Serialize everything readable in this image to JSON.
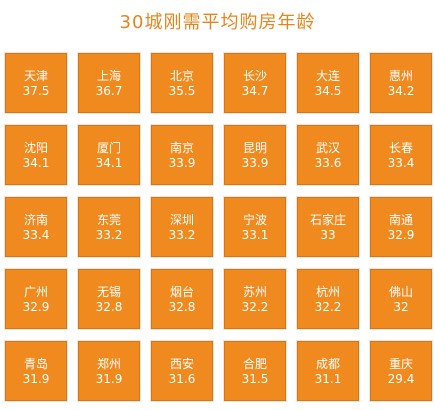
{
  "title": "30城刚需平均购房年龄",
  "chart_data": {
    "type": "table",
    "title": "30城刚需平均购房年龄",
    "columns": 6,
    "rows": 5,
    "cells": [
      {
        "city": "天津",
        "value": 37.5,
        "label": "37.5"
      },
      {
        "city": "上海",
        "value": 36.7,
        "label": "36.7"
      },
      {
        "city": "北京",
        "value": 35.5,
        "label": "35.5"
      },
      {
        "city": "长沙",
        "value": 34.7,
        "label": "34.7"
      },
      {
        "city": "大连",
        "value": 34.5,
        "label": "34.5"
      },
      {
        "city": "惠州",
        "value": 34.2,
        "label": "34.2"
      },
      {
        "city": "沈阳",
        "value": 34.1,
        "label": "34.1"
      },
      {
        "city": "厦门",
        "value": 34.1,
        "label": "34.1"
      },
      {
        "city": "南京",
        "value": 33.9,
        "label": "33.9"
      },
      {
        "city": "昆明",
        "value": 33.9,
        "label": "33.9"
      },
      {
        "city": "武汉",
        "value": 33.6,
        "label": "33.6"
      },
      {
        "city": "长春",
        "value": 33.4,
        "label": "33.4"
      },
      {
        "city": "济南",
        "value": 33.4,
        "label": "33.4"
      },
      {
        "city": "东莞",
        "value": 33.2,
        "label": "33.2"
      },
      {
        "city": "深圳",
        "value": 33.2,
        "label": "33.2"
      },
      {
        "city": "宁波",
        "value": 33.1,
        "label": "33.1"
      },
      {
        "city": "石家庄",
        "value": 33,
        "label": "33"
      },
      {
        "city": "南通",
        "value": 32.9,
        "label": "32.9"
      },
      {
        "city": "广州",
        "value": 32.9,
        "label": "32.9"
      },
      {
        "city": "无锡",
        "value": 32.8,
        "label": "32.8"
      },
      {
        "city": "烟台",
        "value": 32.8,
        "label": "32.8"
      },
      {
        "city": "苏州",
        "value": 32.2,
        "label": "32.2"
      },
      {
        "city": "杭州",
        "value": 32.2,
        "label": "32.2"
      },
      {
        "city": "佛山",
        "value": 32,
        "label": "32"
      },
      {
        "city": "青岛",
        "value": 31.9,
        "label": "31.9"
      },
      {
        "city": "郑州",
        "value": 31.9,
        "label": "31.9"
      },
      {
        "city": "西安",
        "value": 31.6,
        "label": "31.6"
      },
      {
        "city": "合肥",
        "value": 31.5,
        "label": "31.5"
      },
      {
        "city": "成都",
        "value": 31.1,
        "label": "31.1"
      },
      {
        "city": "重庆",
        "value": 29.4,
        "label": "29.4"
      }
    ],
    "colors": {
      "tile": "#f08a1e",
      "title": "#e8841c",
      "text": "#ffffff"
    }
  }
}
